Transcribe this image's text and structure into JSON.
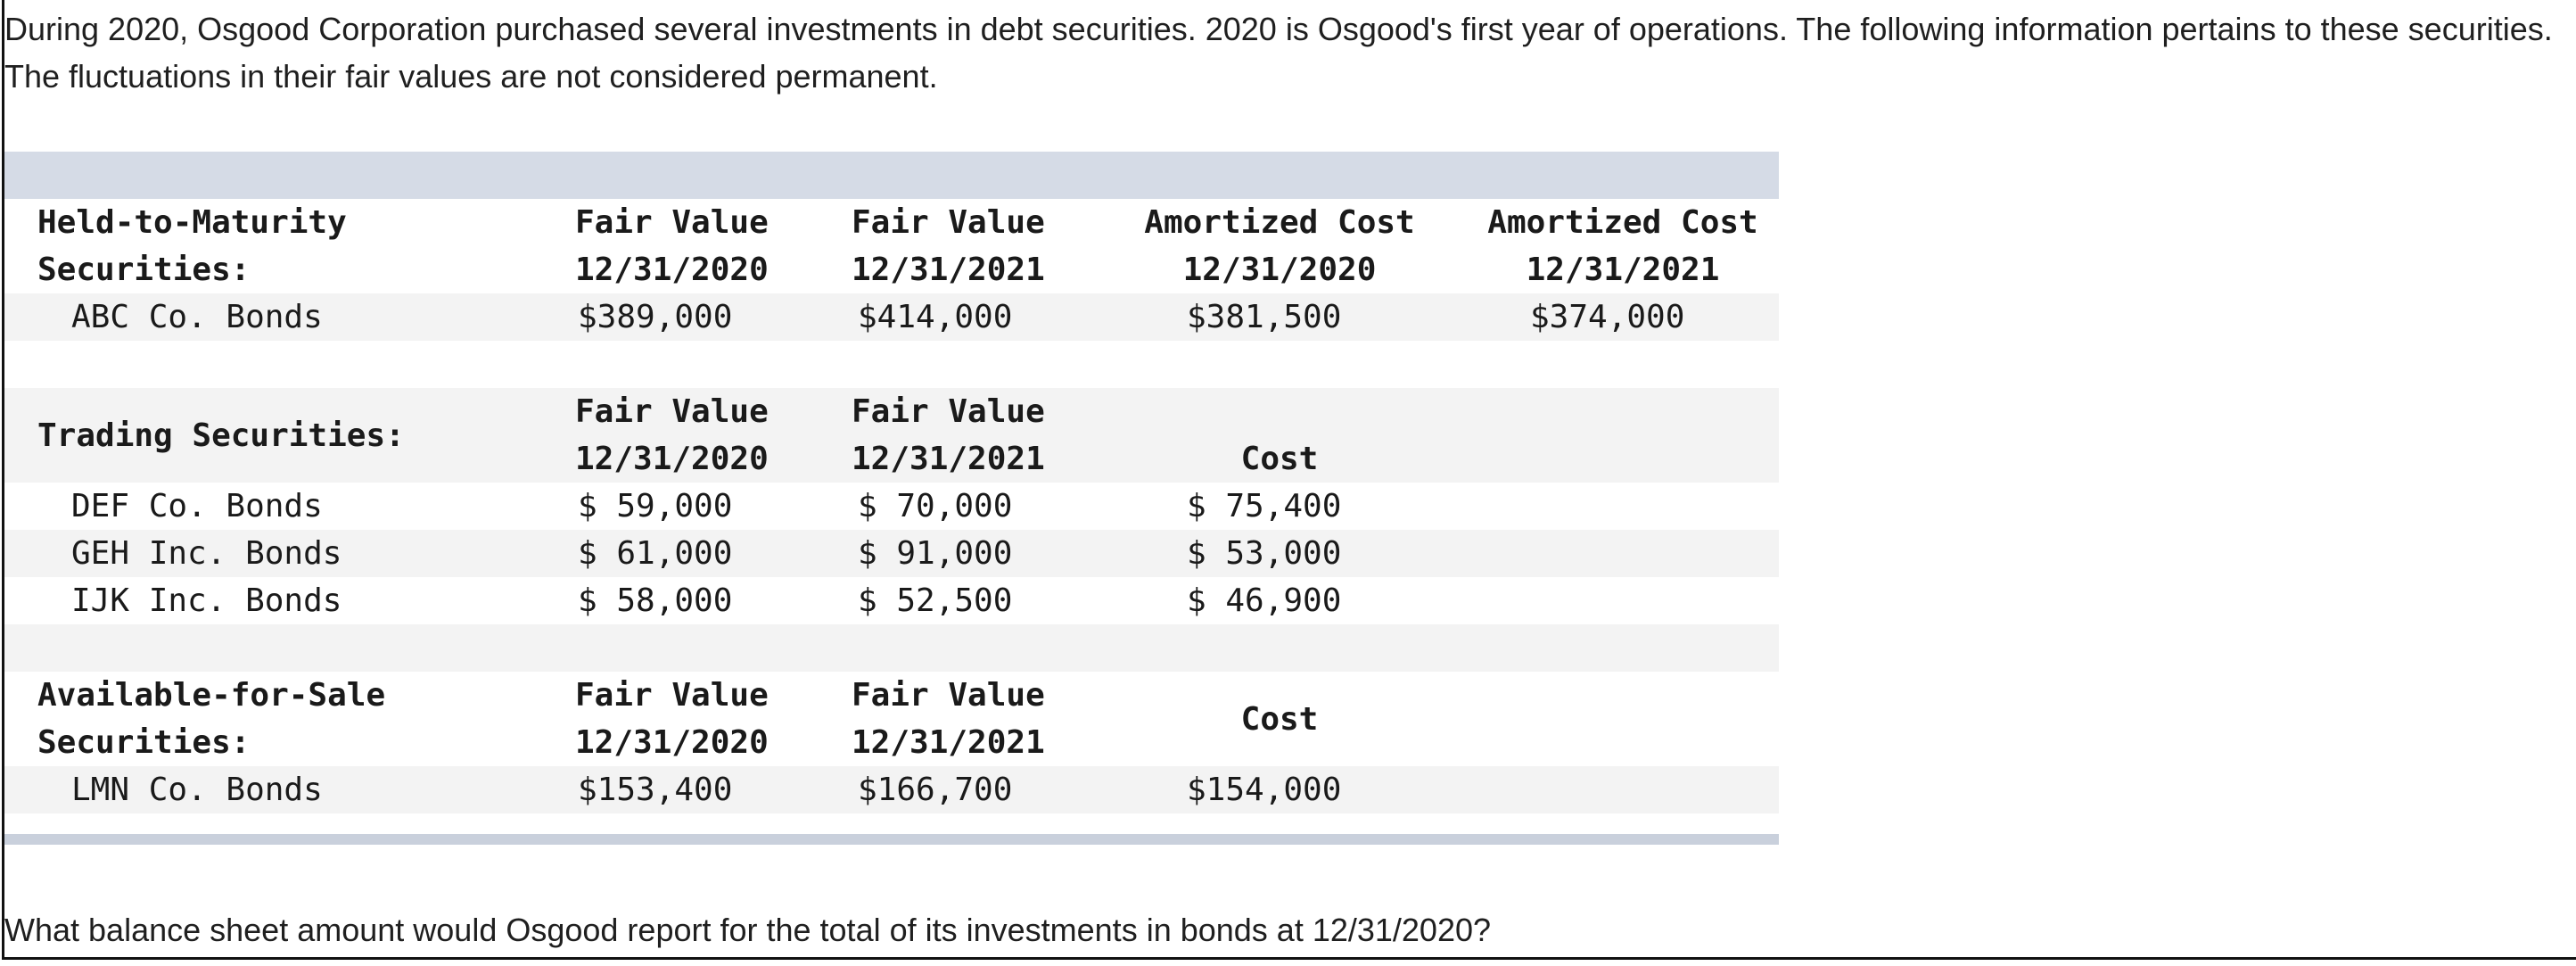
{
  "intro": "During 2020, Osgood Corporation purchased several investments in debt securities. 2020 is Osgood's first year of operations. The following information pertains to these securities. The fluctuations in their fair values are not considered permanent.",
  "question": "What balance sheet amount would Osgood report for the total of its investments in bonds at 12/31/2020?",
  "htm": {
    "title1": "Held-to-Maturity",
    "title2": "Securities:",
    "headers": [
      {
        "l1": "Fair Value",
        "l2": "12/31/2020"
      },
      {
        "l1": "Fair Value",
        "l2": "12/31/2021"
      },
      {
        "l1": "Amortized Cost",
        "l2": "12/31/2020"
      },
      {
        "l1": "Amortized Cost",
        "l2": "12/31/2021"
      }
    ],
    "rows": [
      {
        "name": "ABC Co. Bonds",
        "v": [
          "$389,000",
          "$414,000",
          "$381,500",
          "$374,000"
        ]
      }
    ]
  },
  "trading": {
    "title": "Trading Securities:",
    "headers": [
      {
        "l1": "Fair Value",
        "l2": "12/31/2020"
      },
      {
        "l1": "Fair Value",
        "l2": "12/31/2021"
      },
      {
        "l1": "",
        "l2": "Cost"
      }
    ],
    "rows": [
      {
        "name": "DEF Co. Bonds",
        "v": [
          "$ 59,000",
          "$ 70,000",
          "$ 75,400"
        ]
      },
      {
        "name": "GEH Inc. Bonds",
        "v": [
          "$ 61,000",
          "$ 91,000",
          "$ 53,000"
        ]
      },
      {
        "name": "IJK Inc. Bonds",
        "v": [
          "$ 58,000",
          "$ 52,500",
          "$ 46,900"
        ]
      }
    ]
  },
  "afs": {
    "title1": "Available-for-Sale",
    "title2": "Securities:",
    "headers": [
      {
        "l1": "Fair Value",
        "l2": "12/31/2020"
      },
      {
        "l1": "Fair Value",
        "l2": "12/31/2021"
      },
      {
        "l1": "",
        "l2": "Cost"
      }
    ],
    "rows": [
      {
        "name": "LMN Co. Bonds",
        "v": [
          "$153,400",
          "$166,700",
          "$154,000"
        ]
      }
    ]
  }
}
